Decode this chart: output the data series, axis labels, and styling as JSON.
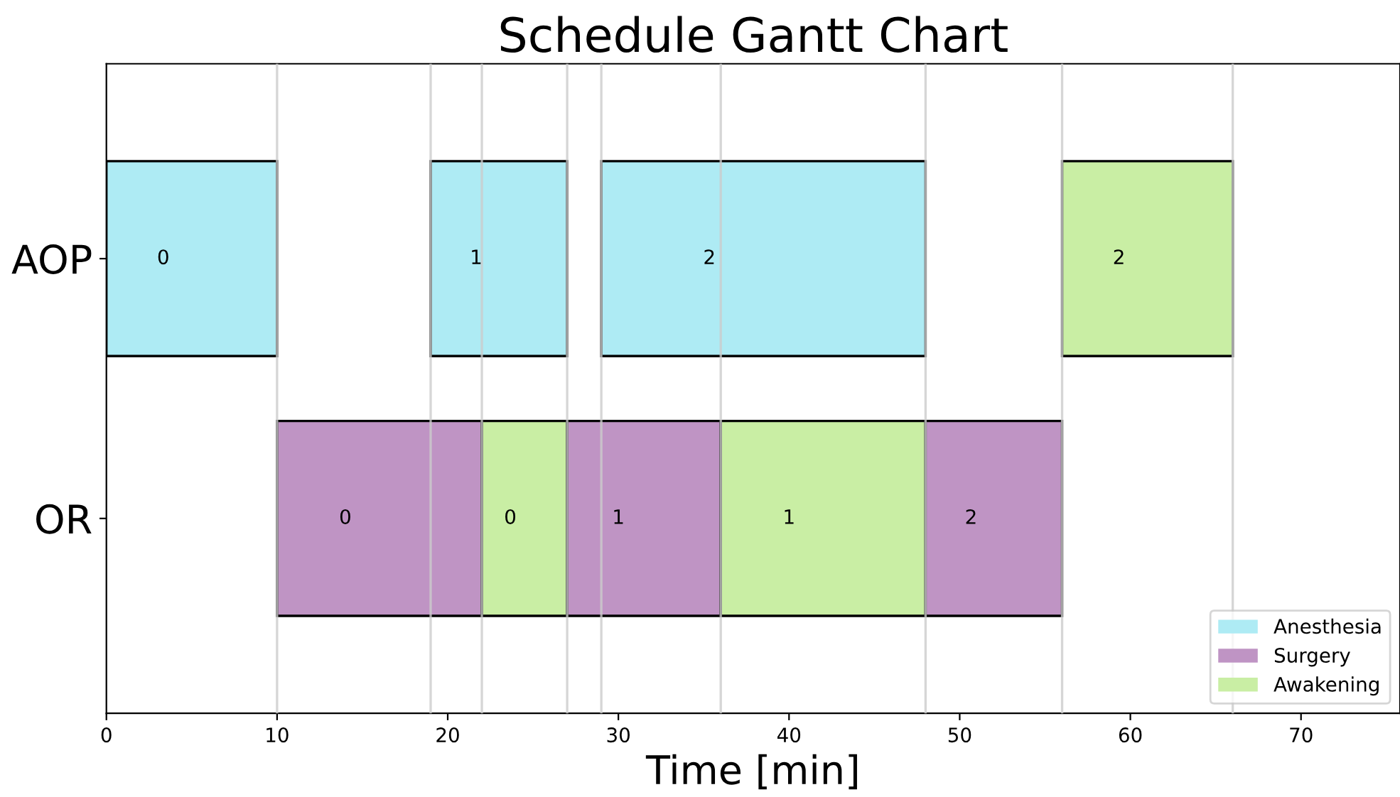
{
  "chart_data": {
    "type": "bar",
    "orientation": "horizontal",
    "title": "Schedule Gantt Chart",
    "xlabel": "Time [min]",
    "categories": [
      "AOP",
      "OR"
    ],
    "series": [
      {
        "name": "Anesthesia",
        "color": "#aeebf4",
        "values": [
          10,
          null
        ],
        "base": [
          0,
          null
        ]
      },
      {
        "name": "Surgery",
        "color": "#bf94c4",
        "values": [
          null,
          12
        ],
        "base": [
          null,
          10
        ]
      },
      {
        "name": "Awakening",
        "color": "#c9eea4",
        "values": [
          10,
          null
        ],
        "base": [
          56,
          null
        ]
      },
      {
        "color": "#aeebf4",
        "values": [
          8,
          null
        ],
        "base": [
          19,
          null
        ]
      },
      {
        "color": "#aeebf4",
        "values": [
          19,
          null
        ],
        "base": [
          29,
          null
        ]
      },
      {
        "color": "#c9eea4",
        "values": [
          null,
          5
        ],
        "base": [
          null,
          22
        ]
      },
      {
        "color": "#bf94c4",
        "values": [
          null,
          9
        ],
        "base": [
          null,
          27
        ]
      },
      {
        "color": "#c9eea4",
        "values": [
          null,
          12
        ],
        "base": [
          null,
          36
        ]
      },
      {
        "color": "#bf94c4",
        "values": [
          null,
          8
        ],
        "base": [
          null,
          48
        ]
      }
    ],
    "annotations": [
      "0",
      "0",
      "2",
      "1",
      "2",
      "0",
      "1",
      "1",
      "2"
    ],
    "ref_lines": [
      {
        "axis": "x",
        "value": 10,
        "color": "#cccccc"
      },
      {
        "axis": "x",
        "value": 19,
        "color": "#cccccc"
      },
      {
        "axis": "x",
        "value": 22,
        "color": "#cccccc"
      },
      {
        "axis": "x",
        "value": 27,
        "color": "#cccccc"
      },
      {
        "axis": "x",
        "value": 29,
        "color": "#cccccc"
      },
      {
        "axis": "x",
        "value": 36,
        "color": "#cccccc"
      },
      {
        "axis": "x",
        "value": 48,
        "color": "#cccccc"
      },
      {
        "axis": "x",
        "value": 56,
        "color": "#cccccc"
      },
      {
        "axis": "x",
        "value": 66,
        "color": "#cccccc"
      }
    ],
    "xlim": [
      0,
      75.8
    ],
    "xticks": [
      0,
      10,
      20,
      30,
      40,
      50,
      60,
      70
    ],
    "legend": "bottom right",
    "grid": false
  }
}
